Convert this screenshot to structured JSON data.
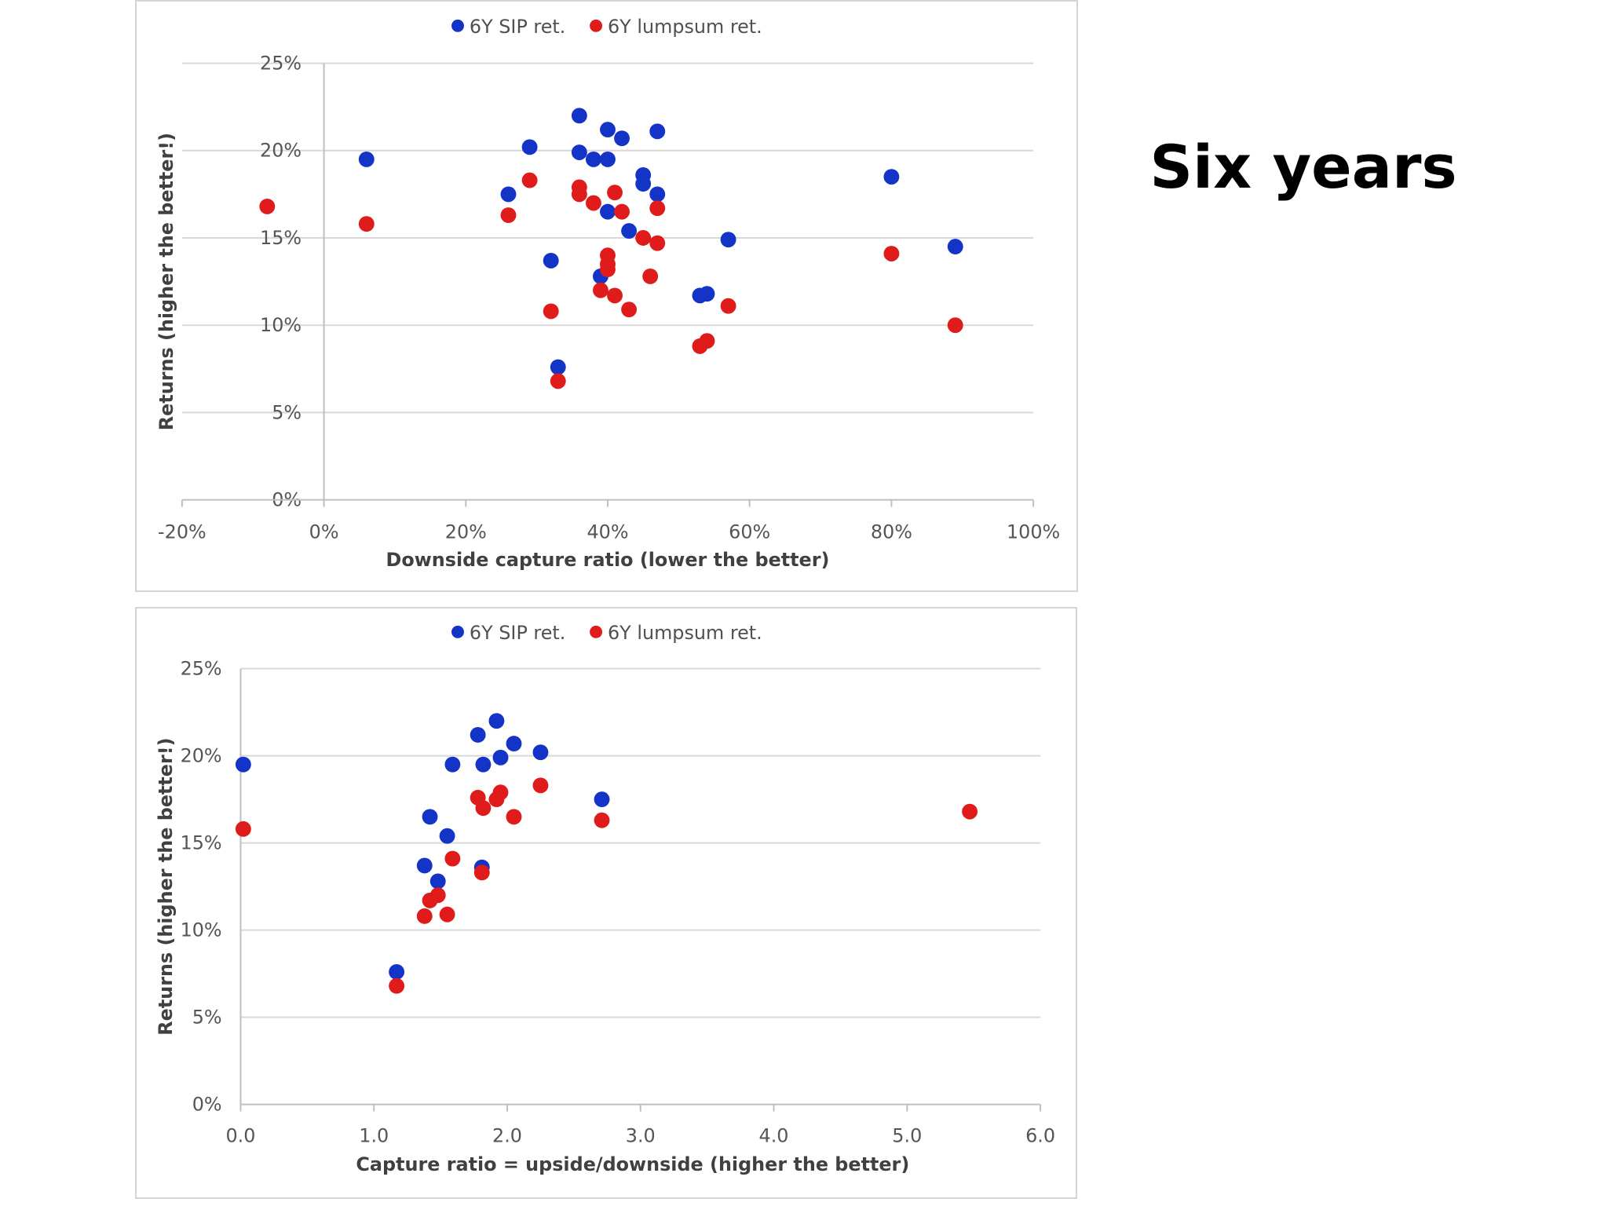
{
  "slide": {
    "title": "Six years"
  },
  "colors": {
    "sip": "#1434c8",
    "lumpsum": "#e01b1b",
    "grid": "#d9d9d9",
    "axis": "#bfbfbf"
  },
  "chart_data": [
    {
      "type": "scatter",
      "legend": {
        "position": "top",
        "entries": [
          "6Y SIP ret.",
          "6Y lumpsum ret."
        ]
      },
      "xlabel": "Downside capture ratio (lower the better)",
      "ylabel": "Returns (higher the better!)",
      "xlim": [
        -0.2,
        1.0
      ],
      "ylim": [
        0,
        0.25
      ],
      "x_ticks": [
        "-20%",
        "0%",
        "20%",
        "40%",
        "60%",
        "80%",
        "100%"
      ],
      "y_ticks": [
        "0%",
        "5%",
        "10%",
        "15%",
        "20%",
        "25%"
      ],
      "grid": "horizontal",
      "series": [
        {
          "name": "6Y SIP ret.",
          "color": "#1434c8",
          "points": [
            [
              0.06,
              0.195
            ],
            [
              0.26,
              0.175
            ],
            [
              0.29,
              0.202
            ],
            [
              0.32,
              0.137
            ],
            [
              0.33,
              0.076
            ],
            [
              0.36,
              0.22
            ],
            [
              0.36,
              0.199
            ],
            [
              0.38,
              0.195
            ],
            [
              0.39,
              0.128
            ],
            [
              0.4,
              0.195
            ],
            [
              0.4,
              0.165
            ],
            [
              0.4,
              0.212
            ],
            [
              0.42,
              0.207
            ],
            [
              0.43,
              0.154
            ],
            [
              0.45,
              0.181
            ],
            [
              0.45,
              0.186
            ],
            [
              0.47,
              0.211
            ],
            [
              0.47,
              0.175
            ],
            [
              0.53,
              0.117
            ],
            [
              0.54,
              0.118
            ],
            [
              0.57,
              0.149
            ],
            [
              0.8,
              0.185
            ],
            [
              0.89,
              0.145
            ]
          ]
        },
        {
          "name": "6Y lumpsum ret.",
          "color": "#e01b1b",
          "points": [
            [
              -0.08,
              0.168
            ],
            [
              0.06,
              0.158
            ],
            [
              0.26,
              0.163
            ],
            [
              0.29,
              0.183
            ],
            [
              0.32,
              0.108
            ],
            [
              0.33,
              0.068
            ],
            [
              0.36,
              0.179
            ],
            [
              0.36,
              0.175
            ],
            [
              0.38,
              0.17
            ],
            [
              0.39,
              0.12
            ],
            [
              0.4,
              0.14
            ],
            [
              0.4,
              0.135
            ],
            [
              0.4,
              0.132
            ],
            [
              0.41,
              0.176
            ],
            [
              0.41,
              0.117
            ],
            [
              0.42,
              0.165
            ],
            [
              0.43,
              0.109
            ],
            [
              0.45,
              0.15
            ],
            [
              0.46,
              0.128
            ],
            [
              0.47,
              0.167
            ],
            [
              0.47,
              0.147
            ],
            [
              0.53,
              0.088
            ],
            [
              0.54,
              0.091
            ],
            [
              0.57,
              0.111
            ],
            [
              0.8,
              0.141
            ],
            [
              0.89,
              0.1
            ]
          ]
        }
      ]
    },
    {
      "type": "scatter",
      "legend": {
        "position": "top",
        "entries": [
          "6Y SIP ret.",
          "6Y lumpsum ret."
        ]
      },
      "xlabel": "Capture ratio = upside/downside (higher the better)",
      "ylabel": "Returns (higher the better!)",
      "xlim": [
        0,
        6.0
      ],
      "ylim": [
        0,
        0.25
      ],
      "x_ticks": [
        "0.0",
        "1.0",
        "2.0",
        "3.0",
        "4.0",
        "5.0",
        "6.0"
      ],
      "y_ticks": [
        "0%",
        "5%",
        "10%",
        "15%",
        "20%",
        "25%"
      ],
      "grid": "horizontal",
      "series": [
        {
          "name": "6Y SIP ret.",
          "color": "#1434c8",
          "points": [
            [
              0.02,
              0.195
            ],
            [
              1.17,
              0.076
            ],
            [
              1.38,
              0.137
            ],
            [
              1.42,
              0.165
            ],
            [
              1.48,
              0.128
            ],
            [
              1.55,
              0.154
            ],
            [
              1.59,
              0.195
            ],
            [
              1.78,
              0.212
            ],
            [
              1.81,
              0.136
            ],
            [
              1.82,
              0.195
            ],
            [
              1.92,
              0.22
            ],
            [
              1.95,
              0.199
            ],
            [
              2.05,
              0.207
            ],
            [
              2.25,
              0.202
            ],
            [
              2.71,
              0.175
            ]
          ]
        },
        {
          "name": "6Y lumpsum ret.",
          "color": "#e01b1b",
          "points": [
            [
              0.02,
              0.158
            ],
            [
              1.17,
              0.068
            ],
            [
              1.38,
              0.108
            ],
            [
              1.42,
              0.117
            ],
            [
              1.48,
              0.12
            ],
            [
              1.55,
              0.109
            ],
            [
              1.59,
              0.141
            ],
            [
              1.78,
              0.176
            ],
            [
              1.81,
              0.133
            ],
            [
              1.82,
              0.17
            ],
            [
              1.92,
              0.175
            ],
            [
              1.95,
              0.179
            ],
            [
              2.05,
              0.165
            ],
            [
              2.25,
              0.183
            ],
            [
              2.71,
              0.163
            ],
            [
              5.47,
              0.168
            ]
          ]
        }
      ]
    }
  ]
}
